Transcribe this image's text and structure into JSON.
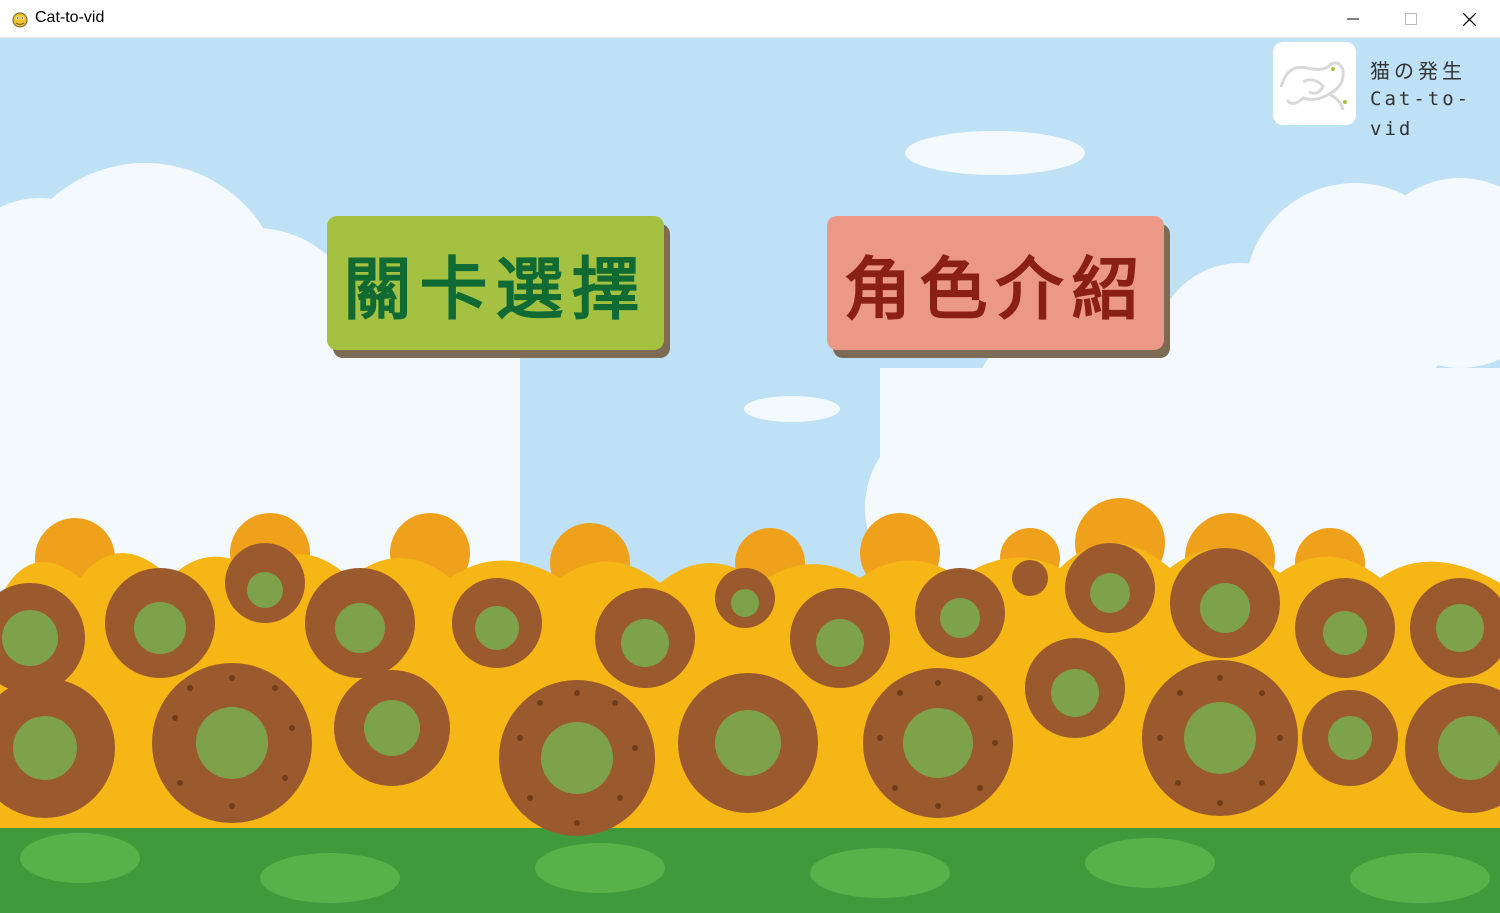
{
  "window": {
    "title": "Cat-to-vid",
    "app_icon": "pygame-snake-icon",
    "controls": [
      "minimize-icon",
      "maximize-icon",
      "close-icon"
    ]
  },
  "logo": {
    "line1": "猫の発生",
    "line2": "Cat-to-vid"
  },
  "menu": {
    "stage_select": "關卡選擇",
    "character_intro": "角色介紹"
  },
  "colors": {
    "sky": "#bfe1f6",
    "stage_button": "#a4c141",
    "stage_text": "#0f6b33",
    "character_button": "#ec9886",
    "character_text": "#8a1f16",
    "petal": "#f6b616",
    "seed_brown": "#9a5a2e",
    "center_green": "#7ea24a",
    "stem_green": "#3f9a3c"
  }
}
